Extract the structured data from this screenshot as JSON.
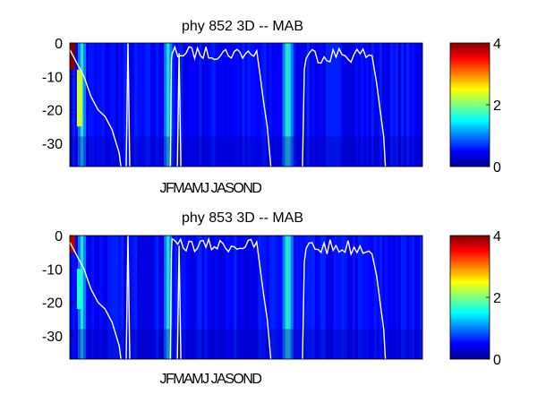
{
  "chart_data": [
    {
      "type": "heatmap",
      "title": "phy  852 3D   -- MAB",
      "xlabel": "JFMAMJ JASOND",
      "ylabel": "",
      "ylim": [
        -37,
        0
      ],
      "yticks": [
        0,
        -10,
        -20,
        -30
      ],
      "colorbar": {
        "range": [
          0,
          4
        ],
        "ticks": [
          4,
          2,
          0
        ],
        "colormap": "jet"
      },
      "background_level": 0.5,
      "bright_columns": [
        0.03,
        0.275,
        0.615
      ],
      "high_values_near_surface": [
        {
          "x": 0.0,
          "depth": [
            0,
            -8
          ],
          "value": 4.0
        },
        {
          "x": 0.02,
          "depth": [
            -8,
            -25
          ],
          "value": 2.3
        }
      ],
      "contour_color": "#ffffff"
    },
    {
      "type": "heatmap",
      "title": "phy  853 3D   -- MAB",
      "xlabel": "JFMAMJ JASOND",
      "ylabel": "",
      "ylim": [
        -37,
        0
      ],
      "yticks": [
        0,
        -10,
        -20,
        -30
      ],
      "colorbar": {
        "range": [
          0,
          4
        ],
        "ticks": [
          4,
          2,
          0
        ],
        "colormap": "jet"
      },
      "background_level": 0.5,
      "bright_columns": [
        0.03,
        0.275,
        0.615
      ],
      "high_values_near_surface": [
        {
          "x": 0.0,
          "depth": [
            0,
            -5
          ],
          "value": 3.8
        },
        {
          "x": 0.02,
          "depth": [
            -10,
            -22
          ],
          "value": 1.6
        }
      ],
      "contour_color": "#ffffff"
    }
  ]
}
